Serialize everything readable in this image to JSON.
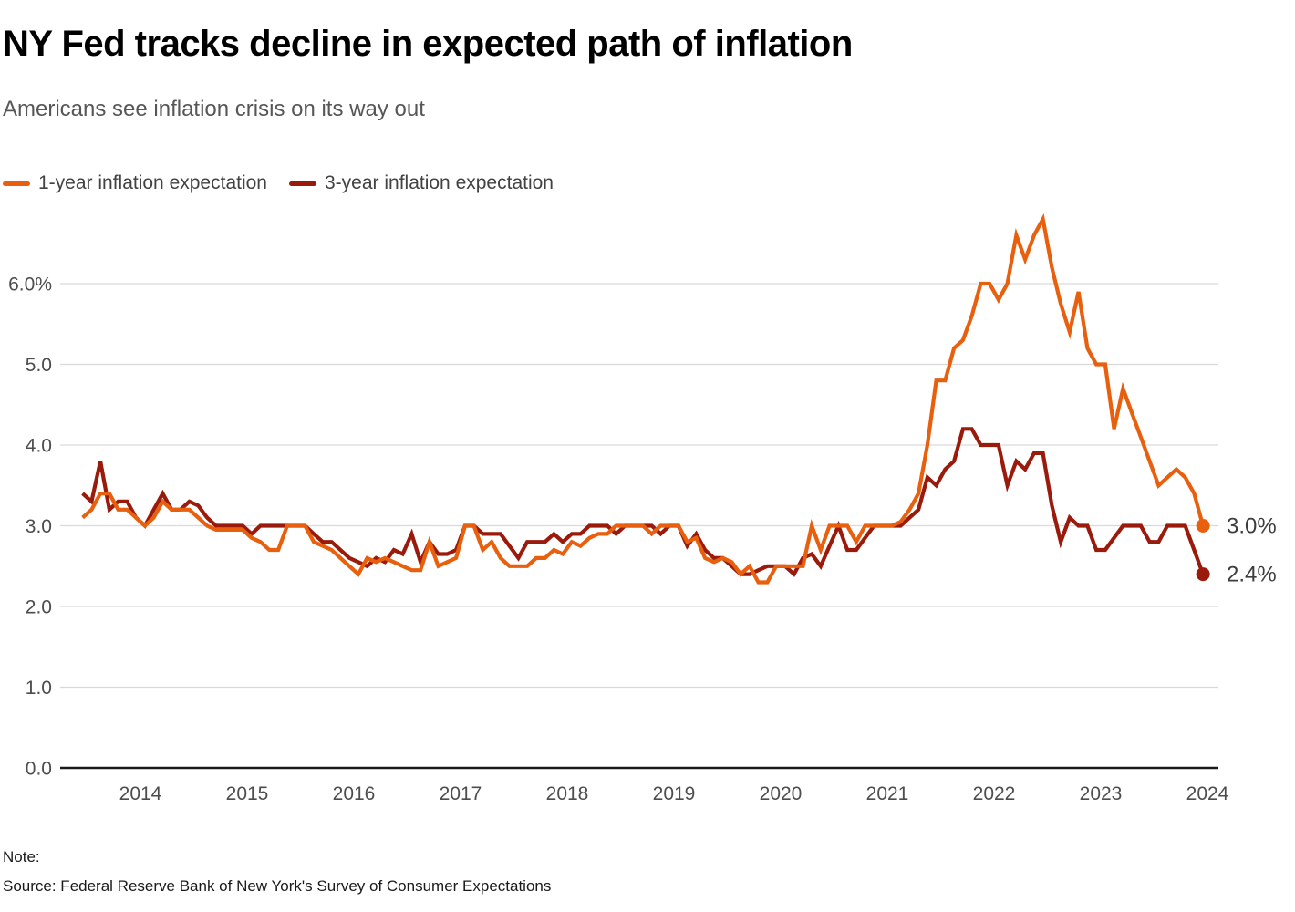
{
  "header": {
    "title": "NY Fed tracks decline in expected path of inflation",
    "subtitle": "Americans see inflation crisis on its way out"
  },
  "legend": {
    "items": [
      {
        "label": "1-year inflation expectation",
        "color": "#E8600E"
      },
      {
        "label": "3-year inflation expectation",
        "color": "#9A1B0C"
      }
    ]
  },
  "chart_data": {
    "type": "line",
    "title": "NY Fed tracks decline in expected path of inflation",
    "x_start_month": "2013-06",
    "x_end_month": "2023-12",
    "x_unit": "month",
    "ylim": [
      0,
      6.9
    ],
    "grid": true,
    "grid_color": "#D9D9D9",
    "axis_color": "#1A1A1A",
    "tick_label_color": "#4D4D4D",
    "end_label_color": "#3D3D3D",
    "y_ticks": [
      {
        "value": 6,
        "label": "6.0%"
      },
      {
        "value": 5,
        "label": "5.0"
      },
      {
        "value": 4,
        "label": "4.0"
      },
      {
        "value": 3,
        "label": "3.0"
      },
      {
        "value": 2,
        "label": "2.0"
      },
      {
        "value": 1,
        "label": "1.0"
      },
      {
        "value": 0,
        "label": "0.0"
      }
    ],
    "x_ticks": [
      {
        "year": 2014,
        "label": "2014"
      },
      {
        "year": 2015,
        "label": "2015"
      },
      {
        "year": 2016,
        "label": "2016"
      },
      {
        "year": 2017,
        "label": "2017"
      },
      {
        "year": 2018,
        "label": "2018"
      },
      {
        "year": 2019,
        "label": "2019"
      },
      {
        "year": 2020,
        "label": "2020"
      },
      {
        "year": 2021,
        "label": "2021"
      },
      {
        "year": 2022,
        "label": "2022"
      },
      {
        "year": 2023,
        "label": "2023"
      },
      {
        "year": 2024,
        "label": "2024"
      }
    ],
    "series": [
      {
        "name": "1-year inflation expectation",
        "color": "#E8600E",
        "end_label": "3.0%",
        "end_value": 3.0,
        "values": [
          3.1,
          3.2,
          3.4,
          3.4,
          3.2,
          3.2,
          3.1,
          3.0,
          3.1,
          3.3,
          3.2,
          3.2,
          3.2,
          3.1,
          3.0,
          2.95,
          2.95,
          2.95,
          2.95,
          2.85,
          2.8,
          2.7,
          2.7,
          3.0,
          3.0,
          3.0,
          2.8,
          2.75,
          2.7,
          2.6,
          2.5,
          2.4,
          2.6,
          2.55,
          2.6,
          2.55,
          2.5,
          2.45,
          2.45,
          2.8,
          2.5,
          2.55,
          2.6,
          3.0,
          3.0,
          2.7,
          2.8,
          2.6,
          2.5,
          2.5,
          2.5,
          2.6,
          2.6,
          2.7,
          2.65,
          2.8,
          2.75,
          2.85,
          2.9,
          2.9,
          3.0,
          3.0,
          3.0,
          3.0,
          2.9,
          3.0,
          3.0,
          3.0,
          2.8,
          2.85,
          2.6,
          2.55,
          2.6,
          2.55,
          2.4,
          2.5,
          2.3,
          2.3,
          2.5,
          2.5,
          2.5,
          2.5,
          3.0,
          2.7,
          3.0,
          3.0,
          3.0,
          2.8,
          3.0,
          3.0,
          3.0,
          3.0,
          3.05,
          3.2,
          3.4,
          4.0,
          4.8,
          4.8,
          5.2,
          5.3,
          5.6,
          6.0,
          6.0,
          5.8,
          6.0,
          6.6,
          6.3,
          6.6,
          6.8,
          6.2,
          5.75,
          5.4,
          5.9,
          5.2,
          5.0,
          5.0,
          4.2,
          4.7,
          4.4,
          4.1,
          3.8,
          3.5,
          3.6,
          3.7,
          3.6,
          3.4,
          3.0
        ]
      },
      {
        "name": "3-year inflation expectation",
        "color": "#9A1B0C",
        "end_label": "2.4%",
        "end_value": 2.4,
        "values": [
          3.4,
          3.3,
          3.8,
          3.2,
          3.3,
          3.3,
          3.1,
          3.0,
          3.2,
          3.4,
          3.2,
          3.2,
          3.3,
          3.25,
          3.1,
          3.0,
          3.0,
          3.0,
          3.0,
          2.9,
          3.0,
          3.0,
          3.0,
          3.0,
          3.0,
          3.0,
          2.9,
          2.8,
          2.8,
          2.7,
          2.6,
          2.55,
          2.5,
          2.6,
          2.55,
          2.7,
          2.65,
          2.9,
          2.55,
          2.8,
          2.65,
          2.65,
          2.7,
          3.0,
          3.0,
          2.9,
          2.9,
          2.9,
          2.75,
          2.6,
          2.8,
          2.8,
          2.8,
          2.9,
          2.8,
          2.9,
          2.9,
          3.0,
          3.0,
          3.0,
          2.9,
          3.0,
          3.0,
          3.0,
          3.0,
          2.9,
          3.0,
          3.0,
          2.75,
          2.9,
          2.7,
          2.6,
          2.6,
          2.5,
          2.4,
          2.4,
          2.45,
          2.5,
          2.5,
          2.5,
          2.4,
          2.6,
          2.65,
          2.5,
          2.75,
          3.0,
          2.7,
          2.7,
          2.85,
          3.0,
          3.0,
          3.0,
          3.0,
          3.1,
          3.2,
          3.6,
          3.5,
          3.7,
          3.8,
          4.2,
          4.2,
          4.0,
          4.0,
          4.0,
          3.5,
          3.8,
          3.7,
          3.9,
          3.9,
          3.25,
          2.8,
          3.1,
          3.0,
          3.0,
          2.7,
          2.7,
          2.85,
          3.0,
          3.0,
          3.0,
          2.8,
          2.8,
          3.0,
          3.0,
          3.0,
          2.7,
          2.4
        ]
      }
    ]
  },
  "footer": {
    "note_label": "Note:",
    "source": "Source: Federal Reserve Bank of New York's Survey of Consumer Expectations"
  }
}
